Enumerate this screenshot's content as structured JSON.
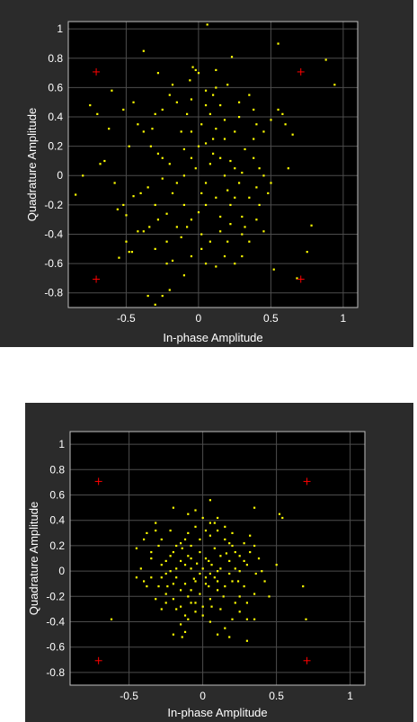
{
  "chart_data": [
    {
      "type": "scatter",
      "xlabel": "In-phase Amplitude",
      "ylabel": "Quadrature Amplitude",
      "xlim": [
        -0.9,
        1.1
      ],
      "ylim": [
        -0.9,
        1.05
      ],
      "xticks": [
        -0.5,
        0,
        0.5,
        1
      ],
      "xtick_labels": [
        "-0.5",
        "0",
        "0.5",
        "1"
      ],
      "yticks": [
        1,
        0.8,
        0.6,
        0.4,
        0.2,
        0,
        -0.2,
        -0.4,
        -0.6,
        -0.8
      ],
      "ytick_labels": [
        "1",
        "0.8",
        "0.6",
        "0.4",
        "0.2",
        "0",
        "-0.2",
        "-0.4",
        "-0.6",
        "-0.8"
      ],
      "grid": true,
      "colors": {
        "background": "#000000",
        "points": "#ffff00",
        "reference": "#ff0000",
        "grid": "#4d4d4d",
        "panel": "#2b2b2b"
      },
      "reference_points": [
        [
          -0.707,
          0.707
        ],
        [
          0.707,
          0.707
        ],
        [
          -0.707,
          -0.707
        ],
        [
          0.707,
          -0.707
        ]
      ],
      "points": [
        [
          0.06,
          1.03
        ],
        [
          -0.38,
          0.85
        ],
        [
          0.55,
          0.9
        ],
        [
          0.88,
          0.79
        ],
        [
          0.94,
          0.62
        ],
        [
          0.23,
          0.81
        ],
        [
          -0.75,
          0.48
        ],
        [
          -0.7,
          0.42
        ],
        [
          -0.62,
          0.32
        ],
        [
          -0.65,
          0.1
        ],
        [
          -0.68,
          0.08
        ],
        [
          -0.8,
          0
        ],
        [
          -0.85,
          -0.13
        ],
        [
          -0.56,
          -0.23
        ],
        [
          -0.55,
          -0.56
        ],
        [
          -0.5,
          -0.27
        ],
        [
          -0.5,
          -0.45
        ],
        [
          -0.46,
          -0.52
        ],
        [
          -0.42,
          -0.38
        ],
        [
          -0.45,
          -0.14
        ],
        [
          -0.4,
          -0.12
        ],
        [
          -0.42,
          0.35
        ],
        [
          -0.38,
          0.3
        ],
        [
          -0.45,
          0.5
        ],
        [
          -0.3,
          0.42
        ],
        [
          -0.25,
          0.45
        ],
        [
          -0.2,
          0.55
        ],
        [
          -0.28,
          0.15
        ],
        [
          -0.25,
          0.12
        ],
        [
          -0.33,
          0.2
        ],
        [
          -0.35,
          -0.08
        ],
        [
          -0.3,
          -0.2
        ],
        [
          -0.28,
          -0.3
        ],
        [
          -0.38,
          -0.38
        ],
        [
          -0.34,
          -0.35
        ],
        [
          -0.22,
          -0.26
        ],
        [
          -0.18,
          -0.12
        ],
        [
          -0.12,
          0.3
        ],
        [
          -0.15,
          0.5
        ],
        [
          -0.05,
          0.52
        ],
        [
          0,
          0.7
        ],
        [
          -0.04,
          0.74
        ],
        [
          -0.02,
          0.72
        ],
        [
          -0.06,
          0.65
        ],
        [
          0.05,
          0.58
        ],
        [
          0.1,
          0.55
        ],
        [
          0.12,
          0.6
        ],
        [
          0.2,
          0.62
        ],
        [
          0.15,
          0.48
        ],
        [
          0.08,
          0.42
        ],
        [
          0.02,
          0.35
        ],
        [
          -0.05,
          0.3
        ],
        [
          -0.1,
          0.18
        ],
        [
          0,
          0.2
        ],
        [
          0.05,
          0.22
        ],
        [
          0.1,
          0.15
        ],
        [
          0.15,
          0.12
        ],
        [
          0.22,
          0.1
        ],
        [
          0.25,
          0.05
        ],
        [
          0.3,
          0.02
        ],
        [
          0.28,
          -0.05
        ],
        [
          0.2,
          -0.1
        ],
        [
          0.12,
          -0.15
        ],
        [
          0.05,
          -0.2
        ],
        [
          0,
          -0.25
        ],
        [
          -0.05,
          -0.3
        ],
        [
          -0.08,
          -0.35
        ],
        [
          0.02,
          -0.4
        ],
        [
          0.08,
          -0.45
        ],
        [
          0.15,
          -0.38
        ],
        [
          0.22,
          -0.33
        ],
        [
          0.3,
          -0.28
        ],
        [
          0.35,
          -0.15
        ],
        [
          0.4,
          -0.08
        ],
        [
          0.45,
          0
        ],
        [
          0.42,
          0.05
        ],
        [
          0.38,
          0.12
        ],
        [
          0.45,
          0.3
        ],
        [
          0.4,
          0.35
        ],
        [
          0.5,
          0.38
        ],
        [
          0.6,
          0.35
        ],
        [
          0.58,
          0.42
        ],
        [
          0.55,
          0.45
        ],
        [
          0.65,
          0.28
        ],
        [
          0.62,
          0.05
        ],
        [
          0.78,
          -0.34
        ],
        [
          0.75,
          -0.52
        ],
        [
          0.52,
          -0.64
        ],
        [
          0.68,
          -0.7
        ],
        [
          0.3,
          -0.55
        ],
        [
          0.25,
          -0.6
        ],
        [
          0.18,
          -0.55
        ],
        [
          0.12,
          -0.62
        ],
        [
          0.05,
          -0.6
        ],
        [
          -0.05,
          -0.55
        ],
        [
          -0.1,
          -0.68
        ],
        [
          -0.2,
          -0.78
        ],
        [
          -0.25,
          -0.82
        ],
        [
          -0.3,
          -0.88
        ],
        [
          -0.35,
          -0.82
        ],
        [
          -0.22,
          -0.6
        ],
        [
          -0.18,
          -0.58
        ],
        [
          -0.22,
          -0.45
        ],
        [
          -0.3,
          -0.5
        ],
        [
          -0.48,
          -0.52
        ],
        [
          0.35,
          0.55
        ],
        [
          0.28,
          0.4
        ],
        [
          0.25,
          0.3
        ],
        [
          0.18,
          0.25
        ],
        [
          0.12,
          0.32
        ],
        [
          -0.02,
          0.05
        ],
        [
          -0.1,
          0
        ],
        [
          -0.15,
          -0.05
        ],
        [
          0.05,
          -0.05
        ],
        [
          0.18,
          0
        ],
        [
          0.22,
          -0.2
        ],
        [
          0.3,
          -0.4
        ],
        [
          0.35,
          -0.45
        ],
        [
          0.4,
          -0.3
        ],
        [
          0.45,
          -0.38
        ],
        [
          -0.6,
          0.58
        ],
        [
          -0.52,
          0.45
        ],
        [
          -0.48,
          0.2
        ],
        [
          -0.58,
          -0.05
        ],
        [
          -0.52,
          -0.2
        ],
        [
          0.48,
          -0.12
        ],
        [
          0.5,
          -0.05
        ],
        [
          0.38,
          0.25
        ],
        [
          0.32,
          0.18
        ],
        [
          -0.2,
          0.08
        ],
        [
          -0.25,
          -0.02
        ],
        [
          -0.1,
          -0.2
        ],
        [
          0.08,
          0.08
        ],
        [
          0.15,
          -0.28
        ],
        [
          0.25,
          -0.15
        ],
        [
          -0.05,
          0.12
        ],
        [
          0.02,
          -0.12
        ],
        [
          0.1,
          0.25
        ],
        [
          -0.08,
          0.42
        ],
        [
          0.05,
          0.48
        ],
        [
          0.18,
          0.38
        ],
        [
          0.28,
          0.5
        ],
        [
          0.38,
          0.45
        ],
        [
          -0.15,
          -0.35
        ],
        [
          -0.12,
          -0.42
        ],
        [
          0.02,
          -0.5
        ],
        [
          0.2,
          -0.45
        ],
        [
          0.32,
          -0.35
        ],
        [
          0.42,
          -0.2
        ],
        [
          -0.32,
          0.32
        ],
        [
          -0.18,
          0.62
        ],
        [
          0.12,
          0.72
        ],
        [
          -0.28,
          0.7
        ]
      ]
    },
    {
      "type": "scatter",
      "xlabel": "In-phase Amplitude",
      "ylabel": "Quadrature Amplitude",
      "xlim": [
        -0.9,
        1.1
      ],
      "ylim": [
        -0.9,
        1.1
      ],
      "xticks": [
        -0.5,
        0,
        0.5,
        1
      ],
      "xtick_labels": [
        "-0.5",
        "0",
        "0.5",
        "1"
      ],
      "yticks": [
        1,
        0.8,
        0.6,
        0.4,
        0.2,
        0,
        -0.2,
        -0.4,
        -0.6,
        -0.8
      ],
      "ytick_labels": [
        "1",
        "0.8",
        "0.6",
        "0.4",
        "0.2",
        "0",
        "-0.2",
        "-0.4",
        "-0.6",
        "-0.8"
      ],
      "grid": true,
      "colors": {
        "background": "#000000",
        "points": "#ffff00",
        "reference": "#ff0000",
        "grid": "#4d4d4d",
        "panel": "#2b2b2b"
      },
      "reference_points": [
        [
          -0.707,
          0.707
        ],
        [
          0.707,
          0.707
        ],
        [
          -0.707,
          -0.707
        ],
        [
          0.707,
          -0.707
        ]
      ],
      "points": [
        [
          0.05,
          0.56
        ],
        [
          -0.2,
          0.5
        ],
        [
          -0.32,
          0.38
        ],
        [
          -0.38,
          0.3
        ],
        [
          -0.4,
          0.25
        ],
        [
          -0.45,
          0.18
        ],
        [
          -0.35,
          0.1
        ],
        [
          -0.42,
          0.02
        ],
        [
          -0.45,
          -0.05
        ],
        [
          -0.38,
          -0.12
        ],
        [
          -0.32,
          -0.22
        ],
        [
          -0.28,
          -0.3
        ],
        [
          -0.25,
          -0.25
        ],
        [
          -0.18,
          -0.3
        ],
        [
          -0.15,
          -0.42
        ],
        [
          -0.12,
          -0.48
        ],
        [
          -0.14,
          -0.52
        ],
        [
          -0.1,
          -0.38
        ],
        [
          -0.05,
          -0.32
        ],
        [
          0,
          -0.28
        ],
        [
          0.05,
          -0.22
        ],
        [
          0.1,
          -0.15
        ],
        [
          0.15,
          -0.12
        ],
        [
          0.2,
          -0.08
        ],
        [
          0.25,
          0
        ],
        [
          0.3,
          0.05
        ],
        [
          0.25,
          0.12
        ],
        [
          0.2,
          0.2
        ],
        [
          0.15,
          0.25
        ],
        [
          0.1,
          0.32
        ],
        [
          0.05,
          0.38
        ],
        [
          0,
          0.42
        ],
        [
          -0.05,
          0.35
        ],
        [
          -0.1,
          0.3
        ],
        [
          -0.15,
          0.22
        ],
        [
          -0.2,
          0.15
        ],
        [
          -0.25,
          0.08
        ],
        [
          -0.22,
          0
        ],
        [
          -0.18,
          -0.05
        ],
        [
          -0.12,
          -0.1
        ],
        [
          -0.08,
          -0.15
        ],
        [
          -0.02,
          -0.18
        ],
        [
          0.02,
          -0.1
        ],
        [
          0.08,
          -0.05
        ],
        [
          0.12,
          0.02
        ],
        [
          0.18,
          0.08
        ],
        [
          0.22,
          0.15
        ],
        [
          0.28,
          0.22
        ],
        [
          0.32,
          0.28
        ],
        [
          0.35,
          0.2
        ],
        [
          0.38,
          0.1
        ],
        [
          0.4,
          0
        ],
        [
          0.42,
          -0.08
        ],
        [
          0.35,
          -0.18
        ],
        [
          0.3,
          -0.25
        ],
        [
          0.25,
          -0.32
        ],
        [
          0.2,
          -0.38
        ],
        [
          0.15,
          -0.45
        ],
        [
          0.1,
          -0.5
        ],
        [
          0.05,
          -0.4
        ],
        [
          0,
          -0.35
        ],
        [
          -0.05,
          -0.25
        ],
        [
          -0.1,
          -0.2
        ],
        [
          -0.15,
          -0.15
        ],
        [
          -0.2,
          -0.1
        ],
        [
          -0.25,
          -0.18
        ],
        [
          -0.3,
          -0.12
        ],
        [
          -0.35,
          -0.05
        ],
        [
          -0.28,
          0.05
        ],
        [
          -0.22,
          0.12
        ],
        [
          -0.18,
          0.2
        ],
        [
          -0.12,
          0.25
        ],
        [
          -0.08,
          0.2
        ],
        [
          -0.02,
          0.15
        ],
        [
          0.02,
          0.1
        ],
        [
          0.06,
          0.05
        ],
        [
          0.1,
          0
        ],
        [
          0.05,
          -0.02
        ],
        [
          0,
          0.02
        ],
        [
          -0.04,
          0.06
        ],
        [
          -0.08,
          0.1
        ],
        [
          -0.12,
          0.05
        ],
        [
          -0.06,
          -0.06
        ],
        [
          0.04,
          -0.12
        ],
        [
          0.14,
          -0.2
        ],
        [
          0.22,
          -0.25
        ],
        [
          0.3,
          -0.38
        ],
        [
          0.35,
          -0.38
        ],
        [
          0.45,
          -0.2
        ],
        [
          0.5,
          0.05
        ],
        [
          0.35,
          0.5
        ],
        [
          0.52,
          0.45
        ],
        [
          0.54,
          0.42
        ],
        [
          0.68,
          -0.12
        ],
        [
          0.7,
          -0.38
        ],
        [
          -0.62,
          -0.38
        ],
        [
          -0.2,
          -0.5
        ],
        [
          0.18,
          -0.52
        ],
        [
          0.3,
          -0.55
        ],
        [
          -0.32,
          0.32
        ],
        [
          -0.28,
          0.25
        ],
        [
          -0.1,
          0.45
        ],
        [
          0.08,
          0.38
        ],
        [
          0.12,
          0.12
        ],
        [
          -0.15,
          0.08
        ],
        [
          0.18,
          -0.02
        ],
        [
          -0.05,
          -0.08
        ],
        [
          0.02,
          -0.05
        ],
        [
          0.08,
          0.18
        ],
        [
          -0.1,
          0.12
        ],
        [
          0.2,
          0.3
        ],
        [
          -0.25,
          -0.02
        ],
        [
          -0.35,
          0.15
        ],
        [
          0.28,
          -0.12
        ],
        [
          0.15,
          0.35
        ],
        [
          -0.02,
          0.25
        ],
        [
          0.05,
          0.28
        ],
        [
          -0.2,
          -0.22
        ],
        [
          0.12,
          -0.3
        ],
        [
          0.25,
          -0.2
        ],
        [
          -0.08,
          -0.25
        ],
        [
          0.02,
          0.32
        ],
        [
          -0.15,
          -0.28
        ],
        [
          0.32,
          0.15
        ],
        [
          -0.4,
          -0.08
        ],
        [
          -0.3,
          0.2
        ],
        [
          0.1,
          0.42
        ],
        [
          -0.05,
          0.48
        ],
        [
          0.22,
          0.02
        ],
        [
          -0.12,
          -0.35
        ],
        [
          0.06,
          -0.28
        ],
        [
          0.18,
          0.22
        ],
        [
          -0.22,
          0.32
        ],
        [
          0.28,
          0.08
        ],
        [
          -0.28,
          -0.05
        ],
        [
          0.36,
          -0.02
        ],
        [
          -0.18,
          0.02
        ],
        [
          0.04,
          0.08
        ],
        [
          -0.02,
          -0.02
        ],
        [
          0.1,
          -0.08
        ],
        [
          -0.08,
          0.02
        ],
        [
          0.16,
          0.14
        ],
        [
          -0.14,
          0.18
        ],
        [
          0.24,
          -0.08
        ],
        [
          -0.24,
          -0.12
        ]
      ]
    }
  ]
}
